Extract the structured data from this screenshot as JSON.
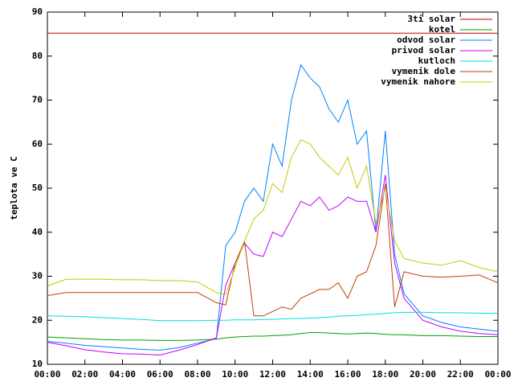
{
  "chart_data": {
    "type": "line",
    "y_label": "teplota ve C",
    "x": [
      0,
      1,
      2,
      3,
      4,
      5,
      6,
      7,
      8,
      9,
      9.5,
      10,
      10.5,
      11,
      11.5,
      12,
      12.5,
      13,
      13.5,
      14,
      14.5,
      15,
      15.5,
      16,
      16.5,
      17,
      17.5,
      18,
      18.5,
      19,
      20,
      21,
      22,
      23,
      24
    ],
    "xlim": [
      0,
      24
    ],
    "xticks": [
      {
        "value": 0,
        "label": "00:00"
      },
      {
        "value": 2,
        "label": "02:00"
      },
      {
        "value": 4,
        "label": "04:00"
      },
      {
        "value": 6,
        "label": "06:00"
      },
      {
        "value": 8,
        "label": "08:00"
      },
      {
        "value": 10,
        "label": "10:00"
      },
      {
        "value": 12,
        "label": "12:00"
      },
      {
        "value": 14,
        "label": "14:00"
      },
      {
        "value": 16,
        "label": "16:00"
      },
      {
        "value": 18,
        "label": "18:00"
      },
      {
        "value": 20,
        "label": "20:00"
      },
      {
        "value": 22,
        "label": "22:00"
      },
      {
        "value": 24,
        "label": "00:00"
      }
    ],
    "ylim": [
      10,
      90
    ],
    "yticks": [
      10,
      20,
      30,
      40,
      50,
      60,
      70,
      80,
      90
    ],
    "series": [
      {
        "name": "3ti solar",
        "color": "#c00000",
        "values": [
          85.2,
          85.2,
          85.2,
          85.2,
          85.2,
          85.2,
          85.2,
          85.2,
          85.2,
          85.2,
          85.2,
          85.2,
          85.2,
          85.2,
          85.2,
          85.2,
          85.2,
          85.2,
          85.2,
          85.2,
          85.2,
          85.2,
          85.2,
          85.2,
          85.2,
          85.2,
          85.2,
          85.2,
          85.2,
          85.2,
          85.2,
          85.2,
          85.2,
          85.2,
          85.2
        ]
      },
      {
        "name": "kotel",
        "color": "#00a000",
        "values": [
          16.2,
          16,
          15.8,
          15.6,
          15.5,
          15.5,
          15.4,
          15.4,
          15.5,
          15.7,
          16,
          16.2,
          16.3,
          16.4,
          16.4,
          16.5,
          16.6,
          16.7,
          17,
          17.2,
          17.2,
          17.1,
          17,
          16.9,
          17,
          17.1,
          17,
          16.8,
          16.7,
          16.7,
          16.5,
          16.5,
          16.4,
          16.3,
          16.3
        ]
      },
      {
        "name": "odvod solar",
        "color": "#0080ff",
        "values": [
          15.2,
          14.8,
          14.3,
          14,
          13.7,
          13.4,
          13.2,
          13.8,
          14.8,
          15.8,
          37,
          40,
          47,
          50,
          47,
          60,
          55,
          70,
          78,
          75,
          73,
          68,
          65,
          70,
          60,
          63,
          40,
          63,
          35,
          26,
          21,
          19.5,
          18.5,
          18,
          17.5
        ]
      },
      {
        "name": "privod solar",
        "color": "#c000ff",
        "values": [
          15,
          14.2,
          13.3,
          12.8,
          12.4,
          12.3,
          12.1,
          13.2,
          14.5,
          16,
          28,
          33,
          37.5,
          35,
          34.5,
          40,
          39,
          43,
          47,
          46,
          48,
          45,
          46,
          48,
          47,
          47,
          40,
          53,
          33,
          25,
          20,
          18.5,
          17.5,
          17,
          16.7
        ]
      },
      {
        "name": "kutloch",
        "color": "#00e0e0",
        "values": [
          21,
          20.9,
          20.8,
          20.6,
          20.4,
          20.2,
          19.9,
          19.9,
          19.9,
          20,
          20,
          20.1,
          20.1,
          20.1,
          20.2,
          20.2,
          20.3,
          20.4,
          20.4,
          20.5,
          20.6,
          20.7,
          20.9,
          21,
          21.1,
          21.3,
          21.4,
          21.6,
          21.7,
          21.8,
          21.8,
          21.7,
          21.7,
          21.6,
          21.6
        ]
      },
      {
        "name": "vymenik dole",
        "color": "#c04000",
        "values": [
          25.6,
          26.3,
          26.3,
          26.3,
          26.3,
          26.3,
          26.3,
          26.3,
          26.3,
          24,
          23.5,
          33,
          38,
          21,
          21,
          22,
          23,
          22.5,
          25,
          26,
          27,
          27,
          28.5,
          25,
          30,
          31,
          37,
          51,
          23,
          31,
          30,
          29.8,
          30,
          30.3,
          28.5
        ]
      },
      {
        "name": "vymenik nahore",
        "color": "#c8c800",
        "values": [
          27.8,
          29.3,
          29.3,
          29.3,
          29.2,
          29.2,
          29,
          29,
          28.7,
          26.3,
          25.8,
          32,
          38,
          43,
          45,
          51,
          49,
          57,
          61,
          60,
          57,
          55,
          53,
          57,
          50,
          55,
          42,
          50,
          38,
          34,
          33,
          32.5,
          33.5,
          32,
          31
        ]
      }
    ]
  }
}
